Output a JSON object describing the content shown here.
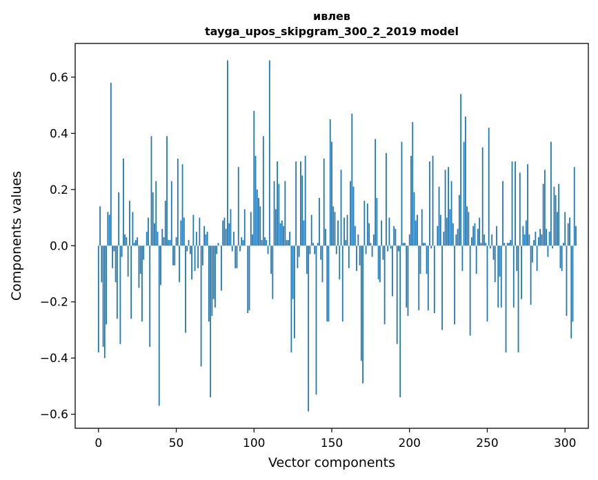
{
  "title_line1": "ивлев",
  "title_line2": "tayga_upos_skipgram_300_2_2019 model",
  "chart_data": {
    "type": "bar",
    "title": "ивлев tayga_upos_skipgram_300_2_2019 model",
    "xlabel": "Vector components",
    "ylabel": "Components values",
    "xlim": [
      -15,
      315
    ],
    "ylim": [
      -0.65,
      0.72
    ],
    "xticks": [
      0,
      50,
      100,
      150,
      200,
      250,
      300
    ],
    "xtick_labels": [
      "0",
      "50",
      "100",
      "150",
      "200",
      "250",
      "300"
    ],
    "yticks": [
      -0.6,
      -0.4,
      -0.2,
      0.0,
      0.2,
      0.4,
      0.6
    ],
    "ytick_labels": [
      "−0.6",
      "−0.4",
      "−0.2",
      "0.0",
      "0.2",
      "0.4",
      "0.6"
    ],
    "bar_color": "#1f77b4",
    "values": [
      -0.38,
      0.14,
      -0.13,
      -0.36,
      -0.4,
      -0.28,
      0.12,
      0.11,
      0.58,
      -0.08,
      -0.02,
      -0.13,
      -0.26,
      0.19,
      -0.35,
      -0.04,
      0.31,
      0.04,
      0.03,
      -0.11,
      0.16,
      -0.26,
      0.12,
      0.01,
      0.02,
      0.03,
      -0.15,
      -0.1,
      -0.27,
      -0.05,
      0.0,
      0.05,
      0.1,
      -0.36,
      0.39,
      0.19,
      0.08,
      0.23,
      0.05,
      -0.57,
      -0.14,
      0.06,
      0.03,
      0.16,
      0.39,
      0.02,
      0.02,
      0.23,
      -0.07,
      -0.07,
      0.03,
      0.31,
      -0.13,
      0.09,
      0.29,
      0.1,
      -0.31,
      -0.02,
      0.02,
      -0.03,
      -0.12,
      0.11,
      -0.09,
      0.05,
      -0.08,
      0.1,
      -0.43,
      -0.07,
      0.07,
      0.04,
      0.05,
      -0.27,
      -0.54,
      -0.25,
      -0.19,
      -0.22,
      -0.03,
      0.01,
      0.0,
      -0.16,
      0.09,
      0.1,
      0.06,
      0.66,
      0.08,
      0.13,
      -0.02,
      0.05,
      -0.08,
      -0.08,
      0.28,
      -0.02,
      0.03,
      0.02,
      0.13,
      0.0,
      -0.24,
      -0.23,
      0.12,
      0.04,
      0.48,
      0.32,
      0.2,
      0.17,
      0.14,
      0.02,
      0.39,
      0.03,
      0.02,
      -0.03,
      0.66,
      -0.1,
      -0.19,
      0.23,
      0.13,
      0.3,
      0.22,
      0.08,
      0.09,
      0.07,
      0.23,
      0.02,
      0.02,
      0.05,
      -0.38,
      -0.19,
      -0.33,
      0.3,
      -0.08,
      -0.04,
      0.3,
      0.25,
      0.09,
      0.32,
      -0.1,
      -0.59,
      -0.03,
      0.11,
      0.01,
      -0.03,
      -0.53,
      0.01,
      0.17,
      -0.05,
      -0.13,
      0.31,
      0.06,
      -0.27,
      -0.27,
      0.45,
      0.37,
      0.14,
      0.12,
      -0.03,
      0.09,
      -0.12,
      0.27,
      -0.27,
      0.1,
      0.02,
      0.11,
      -0.08,
      0.23,
      0.47,
      0.21,
      0.07,
      -0.09,
      0.04,
      -0.07,
      -0.41,
      -0.49,
      0.16,
      -0.03,
      0.15,
      0.08,
      0.01,
      -0.04,
      0.04,
      0.38,
      0.17,
      -0.12,
      -0.13,
      0.09,
      -0.05,
      -0.28,
      0.33,
      -0.02,
      0.1,
      -0.01,
      -0.18,
      0.07,
      0.06,
      -0.35,
      -0.02,
      -0.54,
      0.37,
      0.01,
      0.01,
      -0.22,
      -0.25,
      0.04,
      0.32,
      0.44,
      0.19,
      0.09,
      0.11,
      -0.23,
      -0.1,
      0.13,
      0.01,
      0.01,
      -0.1,
      -0.23,
      0.3,
      -0.01,
      0.32,
      -0.24,
      0.0,
      0.07,
      0.21,
      0.11,
      -0.3,
      0.05,
      0.27,
      0.1,
      0.28,
      0.13,
      0.23,
      0.08,
      -0.28,
      0.04,
      0.06,
      0.18,
      0.54,
      -0.09,
      0.37,
      0.46,
      0.14,
      0.12,
      -0.32,
      0.03,
      0.07,
      0.08,
      -0.1,
      0.06,
      0.1,
      0.01,
      0.35,
      0.04,
      0.01,
      -0.27,
      0.42,
      -0.01,
      0.04,
      -0.05,
      -0.13,
      0.07,
      -0.22,
      -0.11,
      -0.22,
      0.23,
      0.01,
      -0.38,
      0.01,
      0.01,
      0.02,
      0.3,
      -0.22,
      0.3,
      -0.09,
      -0.38,
      0.26,
      -0.19,
      0.07,
      0.04,
      0.09,
      0.29,
      0.04,
      -0.21,
      -0.06,
      0.02,
      0.05,
      -0.09,
      0.03,
      0.06,
      0.04,
      0.22,
      0.27,
      0.06,
      -0.04,
      0.05,
      0.37,
      -0.01,
      0.21,
      0.18,
      0.12,
      0.22,
      -0.08,
      -0.09,
      0.01,
      0.12,
      -0.25,
      0.08,
      0.1,
      -0.33,
      -0.27,
      0.28,
      0.07
    ]
  }
}
